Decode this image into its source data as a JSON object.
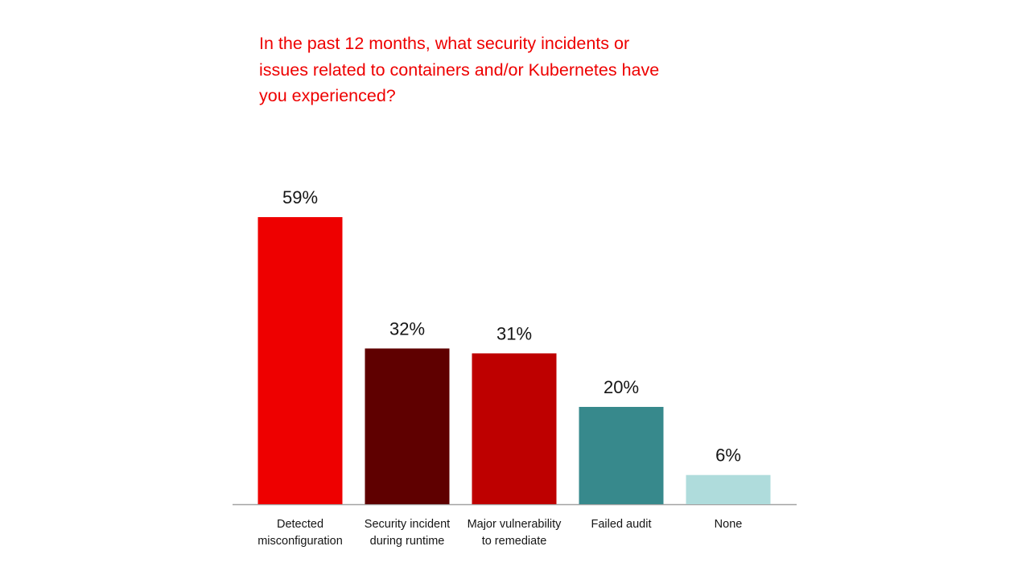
{
  "chart_data": {
    "type": "bar",
    "title": "In the past 12 months, what security incidents or issues related to containers and/or Kubernetes have you experienced?",
    "categories": [
      [
        "Detected",
        "misconfiguration"
      ],
      [
        "Security incident",
        "during runtime"
      ],
      [
        "Major vulnerability",
        "to remediate"
      ],
      [
        "Failed audit"
      ],
      [
        "None"
      ]
    ],
    "values": [
      59,
      32,
      31,
      20,
      6
    ],
    "value_labels": [
      "59%",
      "32%",
      "31%",
      "20%",
      "6%"
    ],
    "unit": "%",
    "ylim": [
      0,
      59
    ],
    "grid": false,
    "legend": "none",
    "colors": [
      "#ee0000",
      "#5f0000",
      "#be0000",
      "#37898c",
      "#afdcdc"
    ],
    "title_color": "#ee0000",
    "axis_color": "#a3a3a3"
  }
}
